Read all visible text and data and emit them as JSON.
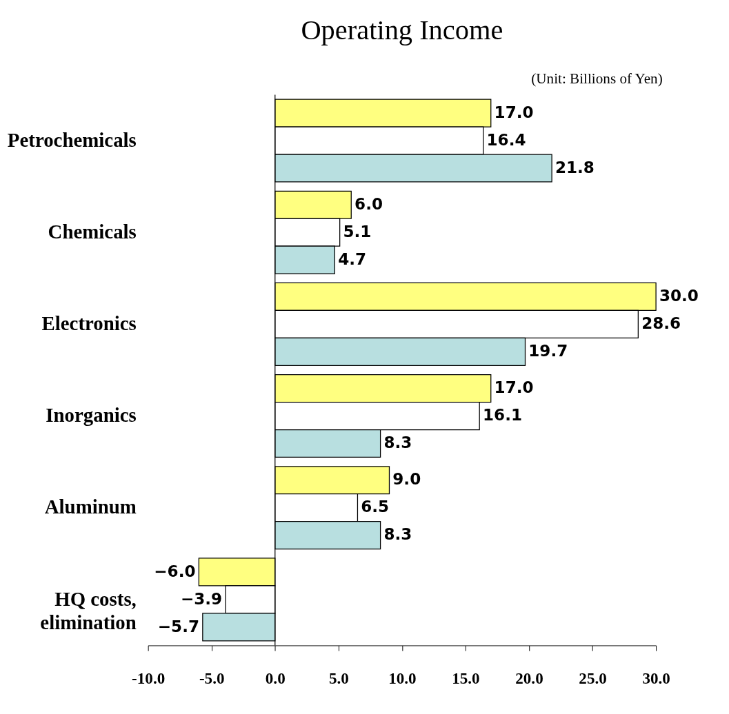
{
  "chart_data": {
    "type": "bar",
    "orientation": "horizontal",
    "title": "Operating Income",
    "annotations": [
      "(Unit: Billions of Yen)"
    ],
    "categories": [
      "Petrochemicals",
      "Chemicals",
      "Electronics",
      "Inorganics",
      "Aluminum",
      "HQ costs,\nelimination"
    ],
    "series": [
      {
        "color": "#ffff80",
        "values": [
          17.0,
          6.0,
          30.0,
          17.0,
          9.0,
          -6.0
        ],
        "value_labels": [
          "17.0",
          "6.0",
          "30.0",
          "17.0",
          "9.0",
          "−6.0"
        ]
      },
      {
        "color": "#ffffff",
        "values": [
          16.4,
          5.1,
          28.6,
          16.1,
          6.5,
          -3.9
        ],
        "value_labels": [
          "16.4",
          "5.1",
          "28.6",
          "16.1",
          "6.5",
          "−3.9"
        ]
      },
      {
        "color": "#b8dfe0",
        "values": [
          21.8,
          4.7,
          19.7,
          8.3,
          8.3,
          -5.7
        ],
        "value_labels": [
          "21.8",
          "4.7",
          "19.7",
          "8.3",
          "8.3",
          "−5.7"
        ]
      }
    ],
    "xlim": [
      -10,
      30
    ],
    "xticks": [
      {
        "value": -10,
        "label": "-10.0"
      },
      {
        "value": -5,
        "label": "-5.0"
      },
      {
        "value": 0,
        "label": "0.0"
      },
      {
        "value": 5,
        "label": "5.0"
      },
      {
        "value": 10,
        "label": "10.0"
      },
      {
        "value": 15,
        "label": "15.0"
      },
      {
        "value": 20,
        "label": "20.0"
      },
      {
        "value": 25,
        "label": "25.0"
      },
      {
        "value": 30,
        "label": "30.0"
      }
    ],
    "ref_lines": [
      {
        "axis": "x",
        "value": 0,
        "color": "#000000"
      }
    ],
    "grid": false,
    "legend": false
  }
}
